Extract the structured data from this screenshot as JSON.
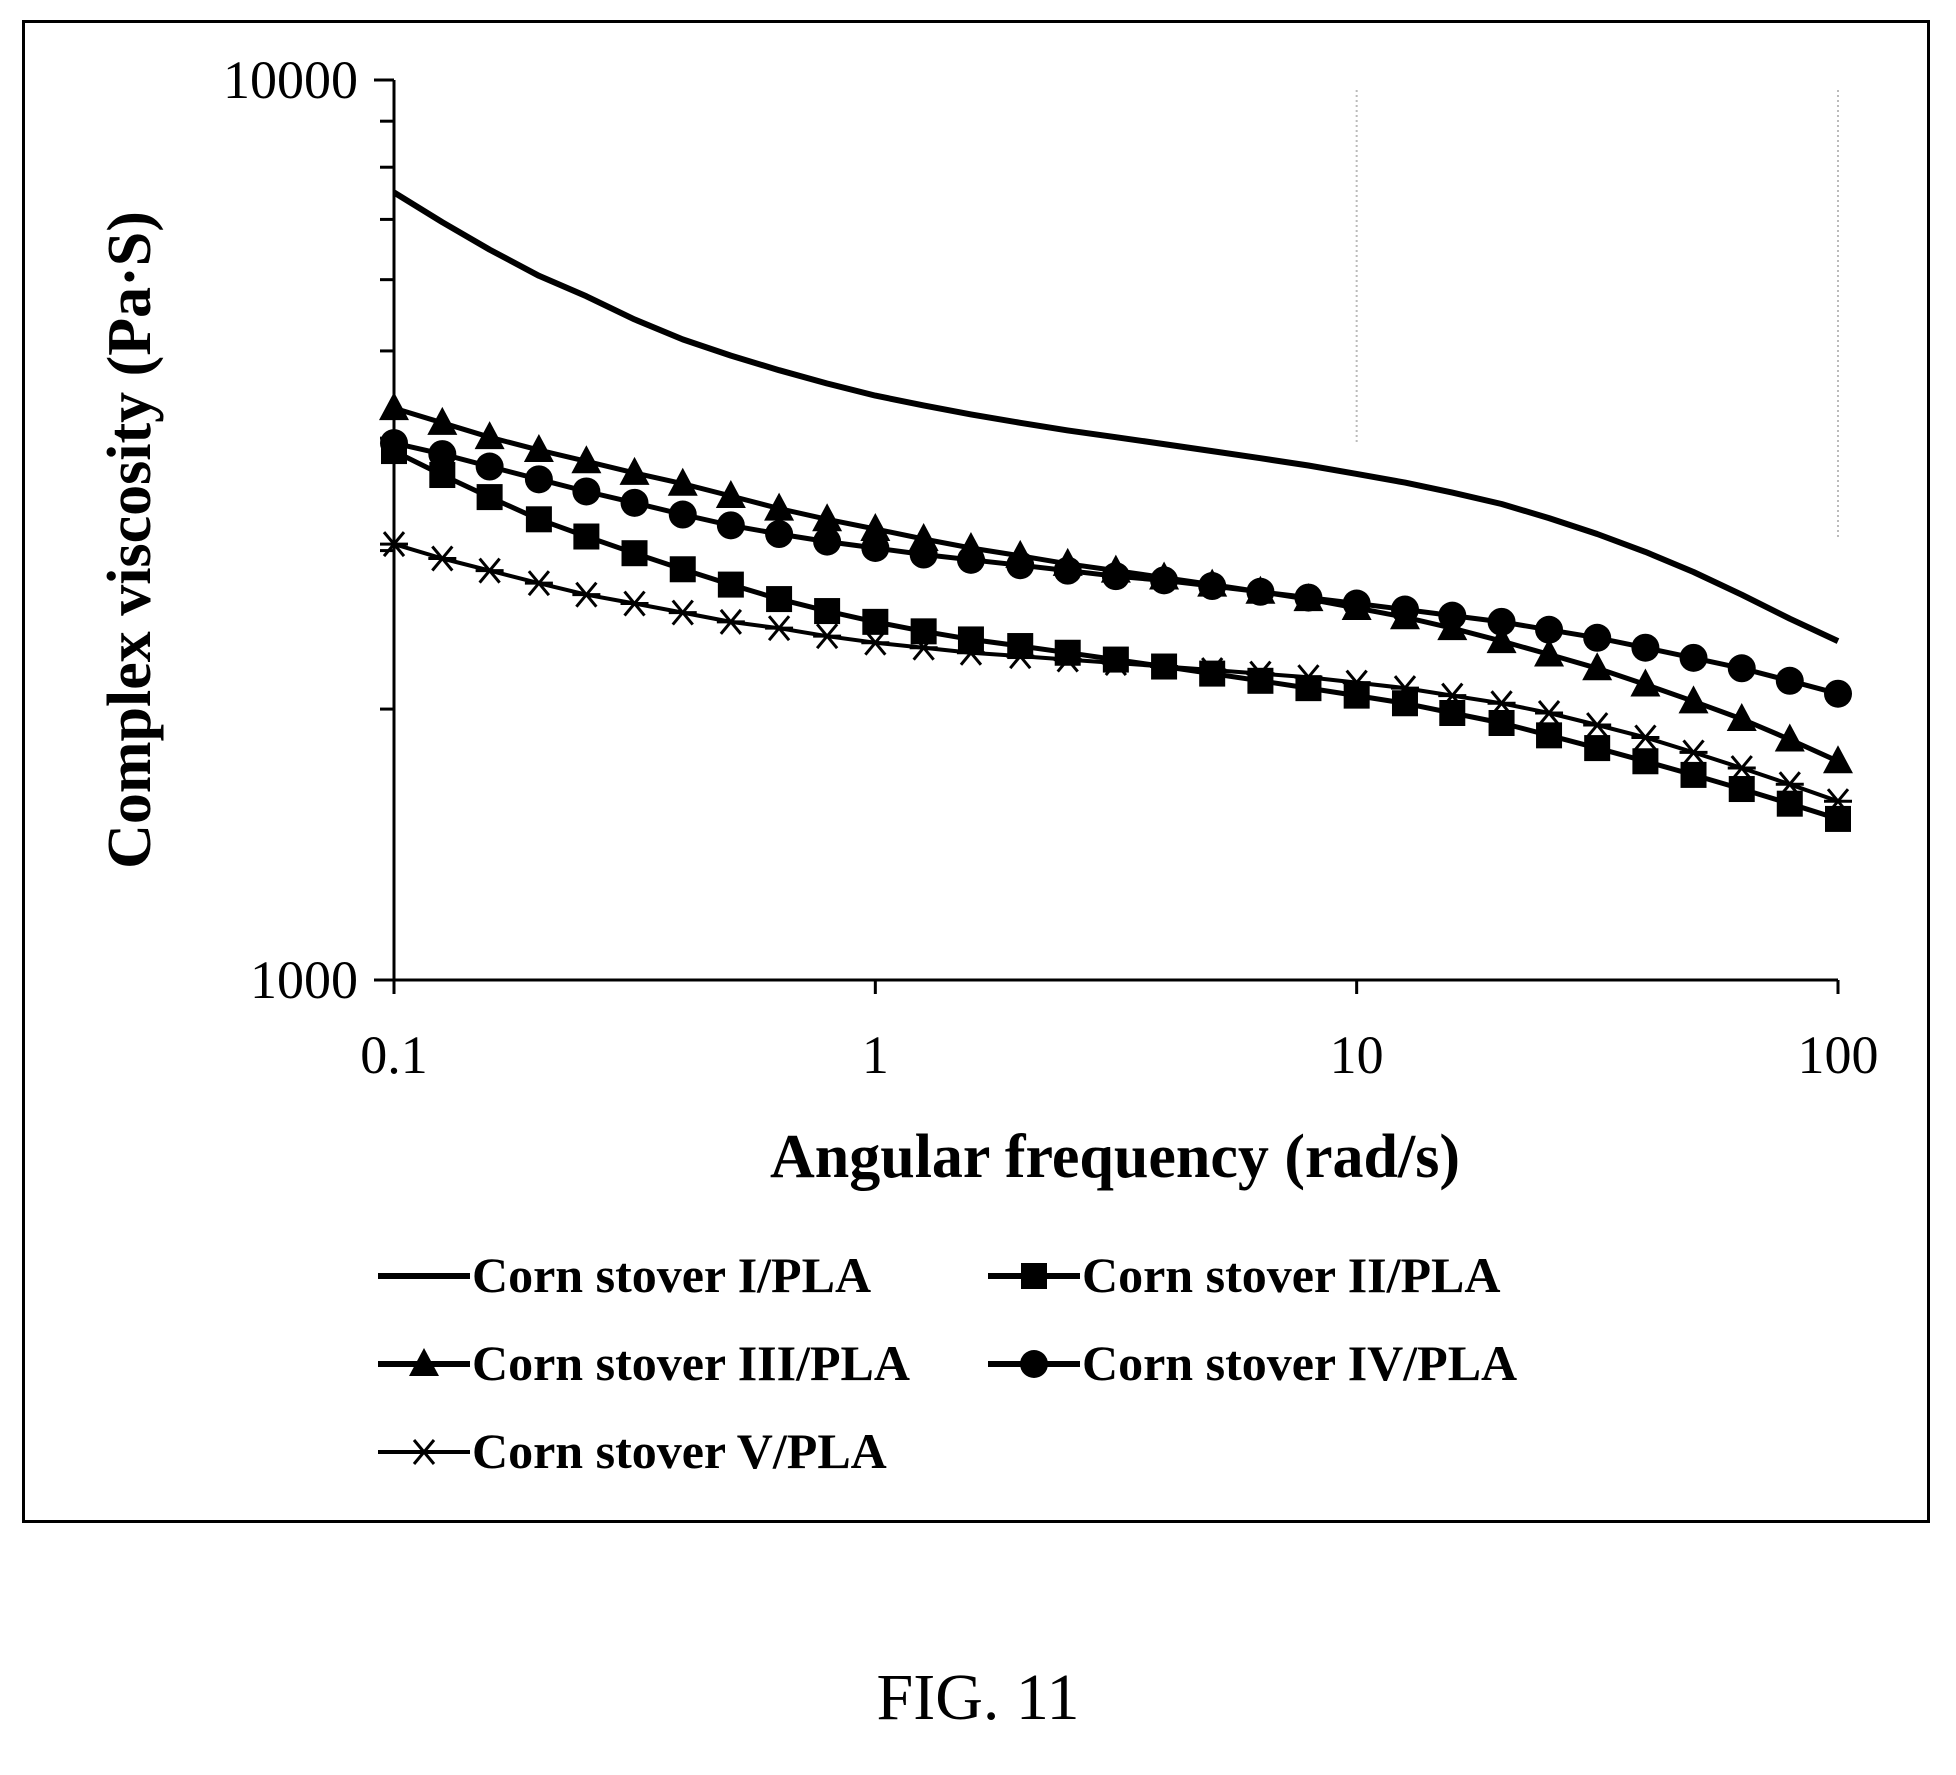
{
  "figure_caption": "FIG. 11",
  "chart_data": {
    "type": "line",
    "xlabel": "Angular frequency (rad/s)",
    "ylabel": "Complex viscosity (Pa·S)",
    "xscale": "log",
    "yscale": "log",
    "xlim": [
      0.1,
      100
    ],
    "ylim": [
      1000,
      10000
    ],
    "x_ticks": [
      "0.1",
      "1",
      "10",
      "100"
    ],
    "y_ticks": [
      "1000",
      "10000"
    ],
    "grid": false,
    "legend_position": "bottom",
    "x": [
      0.1,
      0.126,
      0.158,
      0.2,
      0.251,
      0.316,
      0.398,
      0.501,
      0.631,
      0.794,
      1,
      1.26,
      1.58,
      2,
      2.51,
      3.16,
      3.98,
      5.01,
      6.31,
      7.94,
      10,
      12.6,
      15.8,
      20,
      25.1,
      31.6,
      39.8,
      50.1,
      63.1,
      79.4,
      100
    ],
    "series": [
      {
        "name": "Corn stover I/PLA",
        "marker": "none",
        "values": [
          7500,
          6950,
          6480,
          6060,
          5750,
          5420,
          5150,
          4940,
          4760,
          4600,
          4460,
          4350,
          4250,
          4160,
          4080,
          4010,
          3940,
          3870,
          3800,
          3730,
          3650,
          3570,
          3480,
          3380,
          3260,
          3130,
          2990,
          2840,
          2680,
          2520,
          2380
        ]
      },
      {
        "name": "Corn stover II/PLA",
        "marker": "square",
        "values": [
          3870,
          3640,
          3440,
          3250,
          3110,
          2980,
          2860,
          2750,
          2650,
          2570,
          2500,
          2440,
          2390,
          2350,
          2310,
          2270,
          2230,
          2190,
          2150,
          2110,
          2070,
          2030,
          1980,
          1930,
          1870,
          1810,
          1750,
          1690,
          1630,
          1570,
          1510
        ]
      },
      {
        "name": "Corn stover III/PLA",
        "marker": "triangle",
        "values": [
          4320,
          4160,
          4010,
          3880,
          3770,
          3660,
          3560,
          3450,
          3340,
          3250,
          3170,
          3090,
          3020,
          2960,
          2900,
          2850,
          2800,
          2750,
          2700,
          2650,
          2590,
          2530,
          2460,
          2380,
          2300,
          2220,
          2130,
          2040,
          1950,
          1850,
          1750
        ]
      },
      {
        "name": "Corn stover IV/PLA",
        "marker": "circle",
        "values": [
          3950,
          3840,
          3720,
          3600,
          3490,
          3390,
          3290,
          3200,
          3130,
          3070,
          3020,
          2970,
          2930,
          2890,
          2850,
          2810,
          2780,
          2740,
          2700,
          2660,
          2620,
          2580,
          2540,
          2500,
          2450,
          2400,
          2340,
          2280,
          2220,
          2150,
          2080
        ]
      },
      {
        "name": "Corn stover V/PLA",
        "marker": "asterisk",
        "values": [
          3050,
          2940,
          2850,
          2760,
          2680,
          2620,
          2560,
          2500,
          2460,
          2410,
          2370,
          2340,
          2310,
          2290,
          2270,
          2250,
          2230,
          2210,
          2190,
          2170,
          2140,
          2110,
          2070,
          2030,
          1980,
          1920,
          1860,
          1790,
          1720,
          1650,
          1580
        ]
      }
    ]
  }
}
